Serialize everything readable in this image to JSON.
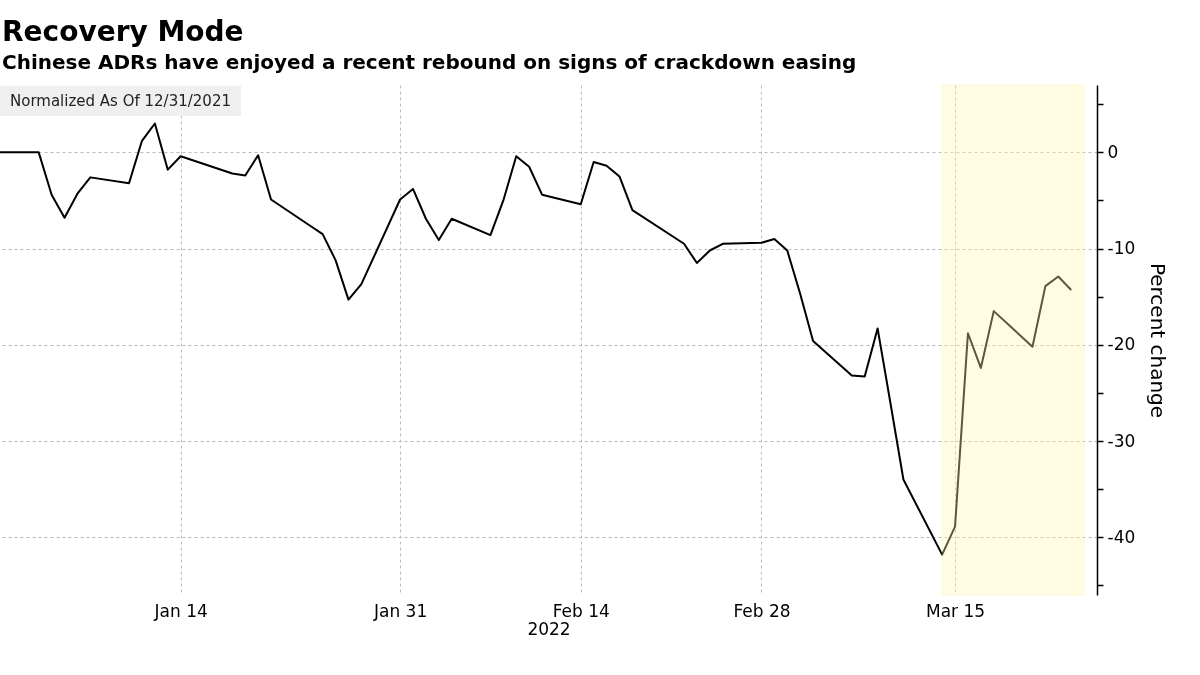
{
  "chart_data": {
    "type": "line",
    "title": "Recovery Mode",
    "subtitle": "Chinese ADRs have enjoyed a recent rebound on signs of crackdown easing",
    "xlabel": "2022",
    "y2label": "Percent change",
    "annotations": [
      "Normalized As Of 12/31/2021"
    ],
    "x": [
      "2021-12-31",
      "2022-01-03",
      "2022-01-04",
      "2022-01-05",
      "2022-01-06",
      "2022-01-07",
      "2022-01-10",
      "2022-01-11",
      "2022-01-12",
      "2022-01-13",
      "2022-01-14",
      "2022-01-18",
      "2022-01-19",
      "2022-01-20",
      "2022-01-21",
      "2022-01-24",
      "2022-01-25",
      "2022-01-26",
      "2022-01-27",
      "2022-01-28",
      "2022-01-31",
      "2022-02-01",
      "2022-02-02",
      "2022-02-03",
      "2022-02-04",
      "2022-02-07",
      "2022-02-08",
      "2022-02-09",
      "2022-02-10",
      "2022-02-11",
      "2022-02-14",
      "2022-02-15",
      "2022-02-16",
      "2022-02-17",
      "2022-02-18",
      "2022-02-22",
      "2022-02-23",
      "2022-02-24",
      "2022-02-25",
      "2022-02-28",
      "2022-03-01",
      "2022-03-02",
      "2022-03-03",
      "2022-03-04",
      "2022-03-07",
      "2022-03-08",
      "2022-03-09",
      "2022-03-10",
      "2022-03-11",
      "2022-03-14",
      "2022-03-15",
      "2022-03-16",
      "2022-03-17",
      "2022-03-18",
      "2022-03-21",
      "2022-03-22",
      "2022-03-23",
      "2022-03-24"
    ],
    "values": [
      0,
      0,
      -4.4,
      -6.8,
      -4.3,
      -2.6,
      -3.2,
      1.2,
      3.0,
      -1.8,
      -0.4,
      -2.2,
      -2.4,
      -0.3,
      -4.9,
      -7.6,
      -8.5,
      -11.2,
      -15.3,
      -13.7,
      -4.9,
      -3.8,
      -6.9,
      -9.1,
      -6.9,
      -8.6,
      -5.0,
      -0.4,
      -1.5,
      -4.4,
      -5.4,
      -1.0,
      -1.4,
      -2.5,
      -6.0,
      -9.5,
      -11.5,
      -10.2,
      -9.5,
      -9.4,
      -9.0,
      -10.2,
      -14.7,
      -19.6,
      -23.2,
      -23.3,
      -18.3,
      -26.1,
      -34.0,
      -41.8,
      -38.9,
      -18.8,
      -22.4,
      -16.5,
      -20.2,
      -13.9,
      -12.9,
      -14.3
    ],
    "color": "#000000",
    "line_style": "solid",
    "xlim": [
      "2021-12-31",
      "2022-03-26"
    ],
    "xticks": [
      {
        "value": "2022-01-14",
        "label": "Jan 14"
      },
      {
        "value": "2022-01-31",
        "label": "Jan 31"
      },
      {
        "value": "2022-02-14",
        "label": "Feb 14"
      },
      {
        "value": "2022-02-28",
        "label": "Feb 28"
      },
      {
        "value": "2022-03-15",
        "label": "Mar 15"
      }
    ],
    "ylim": [
      -46,
      7
    ],
    "yticks": [
      {
        "value": 5,
        "label": null
      },
      0,
      {
        "value": -5,
        "label": null
      },
      -10,
      {
        "value": -15,
        "label": null
      },
      -20,
      {
        "value": -25,
        "label": null
      },
      -30,
      {
        "value": -35,
        "label": null
      },
      -40,
      {
        "value": -45,
        "label": null
      }
    ],
    "bands": [
      {
        "axis": "x",
        "from": "2022-03-14",
        "to": "2022-03-25",
        "color": "#fff9b0"
      }
    ],
    "grid": true
  }
}
